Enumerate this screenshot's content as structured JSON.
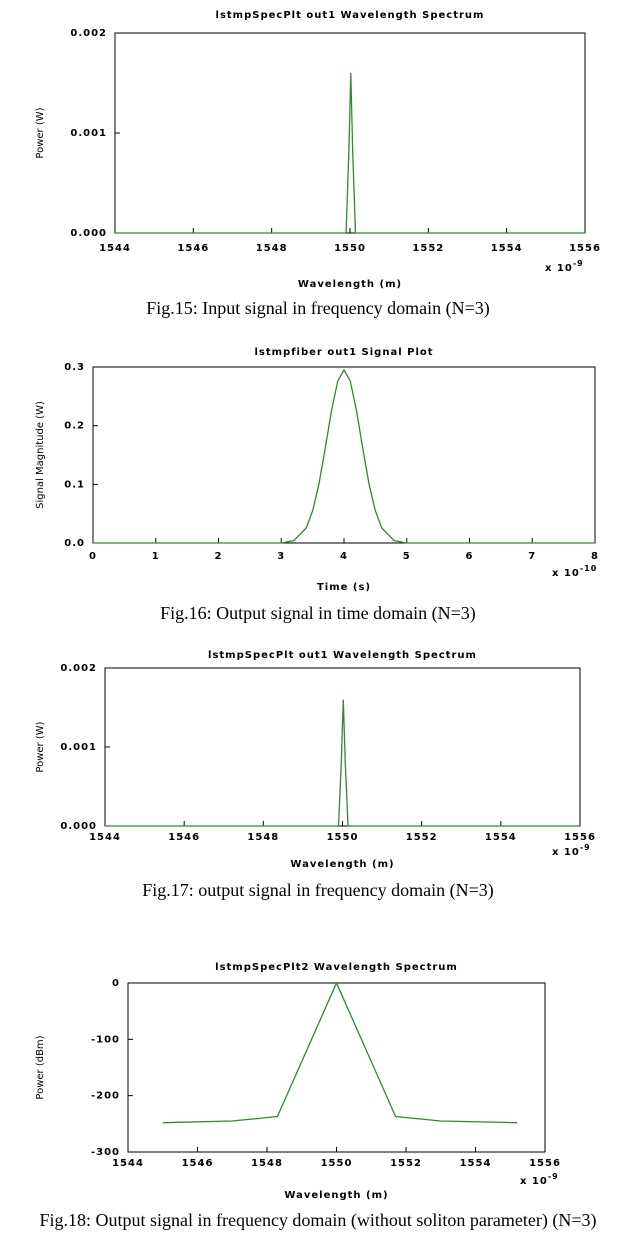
{
  "chart_data": [
    {
      "type": "line",
      "title": "lstmpSpecPlt out1 Wavelength Spectrum",
      "xlabel": "Wavelength (m)",
      "ylabel": "Power (W)",
      "x_scale_base": "x 10",
      "x_scale_exponent": "-9",
      "x": [
        1544,
        1549.9,
        1549.97,
        1550.02,
        1550.07,
        1550.14,
        1556
      ],
      "values": [
        0,
        0,
        0.0008,
        0.0016,
        0.0008,
        0,
        0
      ],
      "color": "#2e8b2e",
      "xlim": [
        1544,
        1556
      ],
      "xticks": [
        1544,
        1546,
        1548,
        1550,
        1552,
        1554,
        1556
      ],
      "ylim": [
        0,
        0.002
      ],
      "yticks": [
        {
          "value": 0,
          "label": "0.000"
        },
        0.001,
        0.002
      ],
      "caption": "Fig.15: Input signal in frequency domain (N=3)"
    },
    {
      "type": "line",
      "title": "lstmpfiber out1 Signal Plot",
      "xlabel": "Time (s)",
      "ylabel": "Signal Magnitude (W)",
      "x_scale_base": "x 10",
      "x_scale_exponent": "-10",
      "x": [
        0,
        3,
        3.2,
        3.4,
        3.5,
        3.6,
        3.7,
        3.8,
        3.9,
        4,
        4.1,
        4.2,
        4.3,
        4.4,
        4.5,
        4.6,
        4.8,
        5,
        8
      ],
      "values": [
        0,
        0,
        0.004,
        0.026,
        0.055,
        0.1,
        0.161,
        0.225,
        0.276,
        0.295,
        0.276,
        0.225,
        0.161,
        0.1,
        0.055,
        0.026,
        0.004,
        0,
        0
      ],
      "color": "#2e8b2e",
      "xlim": [
        0,
        8
      ],
      "xticks": [
        0,
        1,
        2,
        3,
        4,
        5,
        6,
        7,
        8
      ],
      "ylim": [
        0,
        0.3
      ],
      "yticks": [
        {
          "value": 0,
          "label": "0.0"
        },
        0.1,
        0.2,
        0.3
      ],
      "caption": "Fig.16: Output signal in time domain (N=3)"
    },
    {
      "type": "line",
      "title": "lstmpSpecPlt out1 Wavelength Spectrum",
      "xlabel": "Wavelength (m)",
      "ylabel": "Power (W)",
      "x_scale_base": "x 10",
      "x_scale_exponent": "-9",
      "x": [
        1544,
        1549.9,
        1549.97,
        1550.02,
        1550.07,
        1550.14,
        1556
      ],
      "values": [
        0,
        0,
        0.0008,
        0.0016,
        0.0008,
        0,
        0
      ],
      "color": "#2e8b2e",
      "xlim": [
        1544,
        1556
      ],
      "xticks": [
        1544,
        1546,
        1548,
        1550,
        1552,
        1554,
        1556
      ],
      "ylim": [
        0,
        0.002
      ],
      "yticks": [
        {
          "value": 0,
          "label": "0.000"
        },
        0.001,
        0.002
      ],
      "caption": "Fig.17: output signal in frequency domain (N=3)"
    },
    {
      "type": "line",
      "title": "lstmpSpecPlt2 Wavelength Spectrum",
      "xlabel": "Wavelength (m)",
      "ylabel": "Power (dBm)",
      "x_scale_base": "x 10",
      "x_scale_exponent": "-9",
      "x": [
        1545,
        1547,
        1548.3,
        1550,
        1551.7,
        1553,
        1555.2
      ],
      "values": [
        -248,
        -245,
        -237,
        0,
        -237,
        -245,
        -248
      ],
      "color": "#2e8b2e",
      "xlim": [
        1544,
        1556
      ],
      "xticks": [
        1544,
        1546,
        1548,
        1550,
        1552,
        1554,
        1556
      ],
      "ylim": [
        -300,
        0
      ],
      "yticks": [
        -300,
        -200,
        -100,
        0
      ],
      "caption": "Fig.18:  Output signal in frequency domain (without soliton parameter) (N=3)"
    }
  ]
}
